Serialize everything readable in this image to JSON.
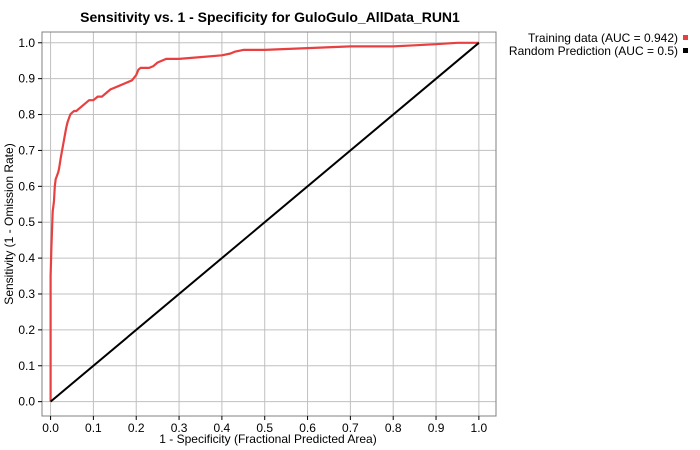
{
  "chart_data": {
    "type": "line",
    "title": "Sensitivity vs. 1 - Specificity for GuloGulo_AllData_RUN1",
    "xlabel": "1 - Specificity  (Fractional Predicted Area)",
    "ylabel": "Sensitivity  (1 - Omission Rate)",
    "xlim": [
      -0.02,
      1.04
    ],
    "ylim": [
      -0.04,
      1.03
    ],
    "grid": true,
    "legend_position": "right-top-outside",
    "x_ticks": [
      0.0,
      0.1,
      0.2,
      0.3,
      0.4,
      0.5,
      0.6,
      0.7,
      0.8,
      0.9,
      1.0
    ],
    "x_tick_labels": [
      "0.0",
      "0.1",
      "0.2",
      "0.3",
      "0.4",
      "0.5",
      "0.6",
      "0.7",
      "0.8",
      "0.9",
      "1.0"
    ],
    "y_ticks": [
      0.0,
      0.1,
      0.2,
      0.3,
      0.4,
      0.5,
      0.6,
      0.7,
      0.8,
      0.9,
      1.0
    ],
    "y_tick_labels": [
      "0.0",
      "0.1",
      "0.2",
      "0.3",
      "0.4",
      "0.5",
      "0.6",
      "0.7",
      "0.8",
      "0.9",
      "1.0"
    ],
    "series": [
      {
        "name": "Training data (AUC = 0.942)",
        "color": "#e84040",
        "x": [
          0.0,
          0.0,
          0.002,
          0.004,
          0.005,
          0.007,
          0.008,
          0.01,
          0.012,
          0.015,
          0.018,
          0.02,
          0.024,
          0.027,
          0.03,
          0.033,
          0.036,
          0.038,
          0.04,
          0.043,
          0.046,
          0.05,
          0.055,
          0.06,
          0.07,
          0.08,
          0.09,
          0.1,
          0.11,
          0.12,
          0.13,
          0.14,
          0.15,
          0.16,
          0.17,
          0.18,
          0.19,
          0.2,
          0.205,
          0.21,
          0.23,
          0.24,
          0.25,
          0.27,
          0.3,
          0.35,
          0.4,
          0.42,
          0.43,
          0.45,
          0.5,
          0.6,
          0.7,
          0.8,
          0.85,
          0.9,
          0.95,
          1.0
        ],
        "y": [
          0.0,
          0.35,
          0.43,
          0.5,
          0.53,
          0.55,
          0.56,
          0.6,
          0.62,
          0.63,
          0.64,
          0.65,
          0.68,
          0.7,
          0.72,
          0.74,
          0.76,
          0.77,
          0.78,
          0.79,
          0.8,
          0.805,
          0.81,
          0.81,
          0.82,
          0.83,
          0.84,
          0.84,
          0.85,
          0.85,
          0.86,
          0.87,
          0.875,
          0.88,
          0.885,
          0.89,
          0.895,
          0.91,
          0.925,
          0.93,
          0.93,
          0.935,
          0.945,
          0.955,
          0.955,
          0.96,
          0.965,
          0.97,
          0.975,
          0.98,
          0.98,
          0.985,
          0.99,
          0.99,
          0.993,
          0.996,
          1.0,
          1.0
        ]
      },
      {
        "name": "Random Prediction (AUC = 0.5)",
        "color": "#000000",
        "x": [
          0.0,
          1.0
        ],
        "y": [
          0.0,
          1.0
        ]
      }
    ]
  }
}
